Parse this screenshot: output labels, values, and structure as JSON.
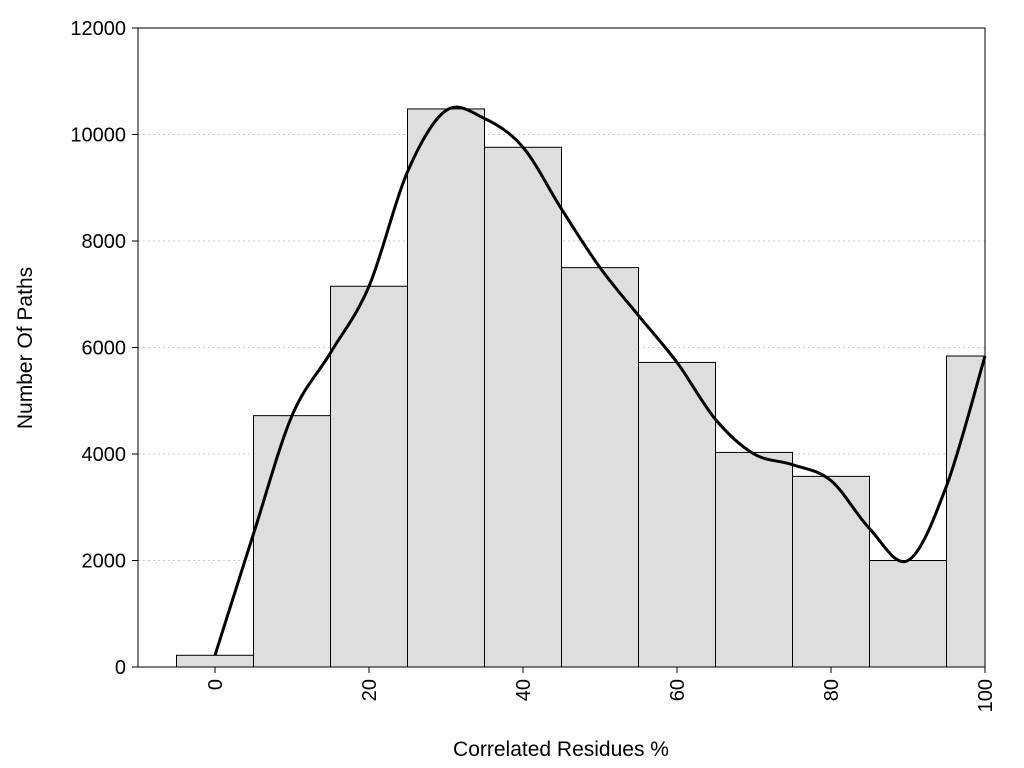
{
  "chart_data": {
    "type": "bar",
    "title": "",
    "xlabel": "Correlated Residues %",
    "ylabel": "Number Of Paths",
    "xlim": [
      -10,
      100
    ],
    "ylim": [
      0,
      12000
    ],
    "grid": {
      "y": true,
      "x": false
    },
    "bar_color": "#dedede",
    "bar_edge_color": "#000000",
    "curve_color": "#000000",
    "x_ticks": [
      {
        "value": 0,
        "label": "0"
      },
      {
        "value": 20,
        "label": "20"
      },
      {
        "value": 40,
        "label": "40"
      },
      {
        "value": 60,
        "label": "60"
      },
      {
        "value": 80,
        "label": "80"
      },
      {
        "value": 100,
        "label": "100"
      }
    ],
    "y_ticks": [
      {
        "value": 0,
        "label": "0"
      },
      {
        "value": 2000,
        "label": "2000"
      },
      {
        "value": 4000,
        "label": "4000"
      },
      {
        "value": 6000,
        "label": "6000"
      },
      {
        "value": 8000,
        "label": "8000"
      },
      {
        "value": 10000,
        "label": "10000"
      },
      {
        "value": 12000,
        "label": "12000"
      }
    ],
    "bars": [
      {
        "x": 0,
        "value": 220
      },
      {
        "x": 10,
        "value": 4720
      },
      {
        "x": 20,
        "value": 7150
      },
      {
        "x": 30,
        "value": 10480
      },
      {
        "x": 40,
        "value": 9760
      },
      {
        "x": 50,
        "value": 7500
      },
      {
        "x": 60,
        "value": 5720
      },
      {
        "x": 70,
        "value": 4030
      },
      {
        "x": 80,
        "value": 3580
      },
      {
        "x": 90,
        "value": 2000
      },
      {
        "x": 100,
        "value": 5840
      }
    ],
    "bin_width": 10,
    "smooth_curve": [
      {
        "x": 0,
        "y": 220
      },
      {
        "x": 5,
        "y": 2500
      },
      {
        "x": 10,
        "y": 4720
      },
      {
        "x": 15,
        "y": 5900
      },
      {
        "x": 20,
        "y": 7150
      },
      {
        "x": 25,
        "y": 9300
      },
      {
        "x": 30,
        "y": 10450
      },
      {
        "x": 35,
        "y": 10300
      },
      {
        "x": 40,
        "y": 9760
      },
      {
        "x": 45,
        "y": 8600
      },
      {
        "x": 50,
        "y": 7500
      },
      {
        "x": 55,
        "y": 6600
      },
      {
        "x": 60,
        "y": 5720
      },
      {
        "x": 65,
        "y": 4650
      },
      {
        "x": 70,
        "y": 4000
      },
      {
        "x": 75,
        "y": 3800
      },
      {
        "x": 80,
        "y": 3500
      },
      {
        "x": 85,
        "y": 2600
      },
      {
        "x": 90,
        "y": 2000
      },
      {
        "x": 95,
        "y": 3400
      },
      {
        "x": 100,
        "y": 5840
      }
    ]
  }
}
